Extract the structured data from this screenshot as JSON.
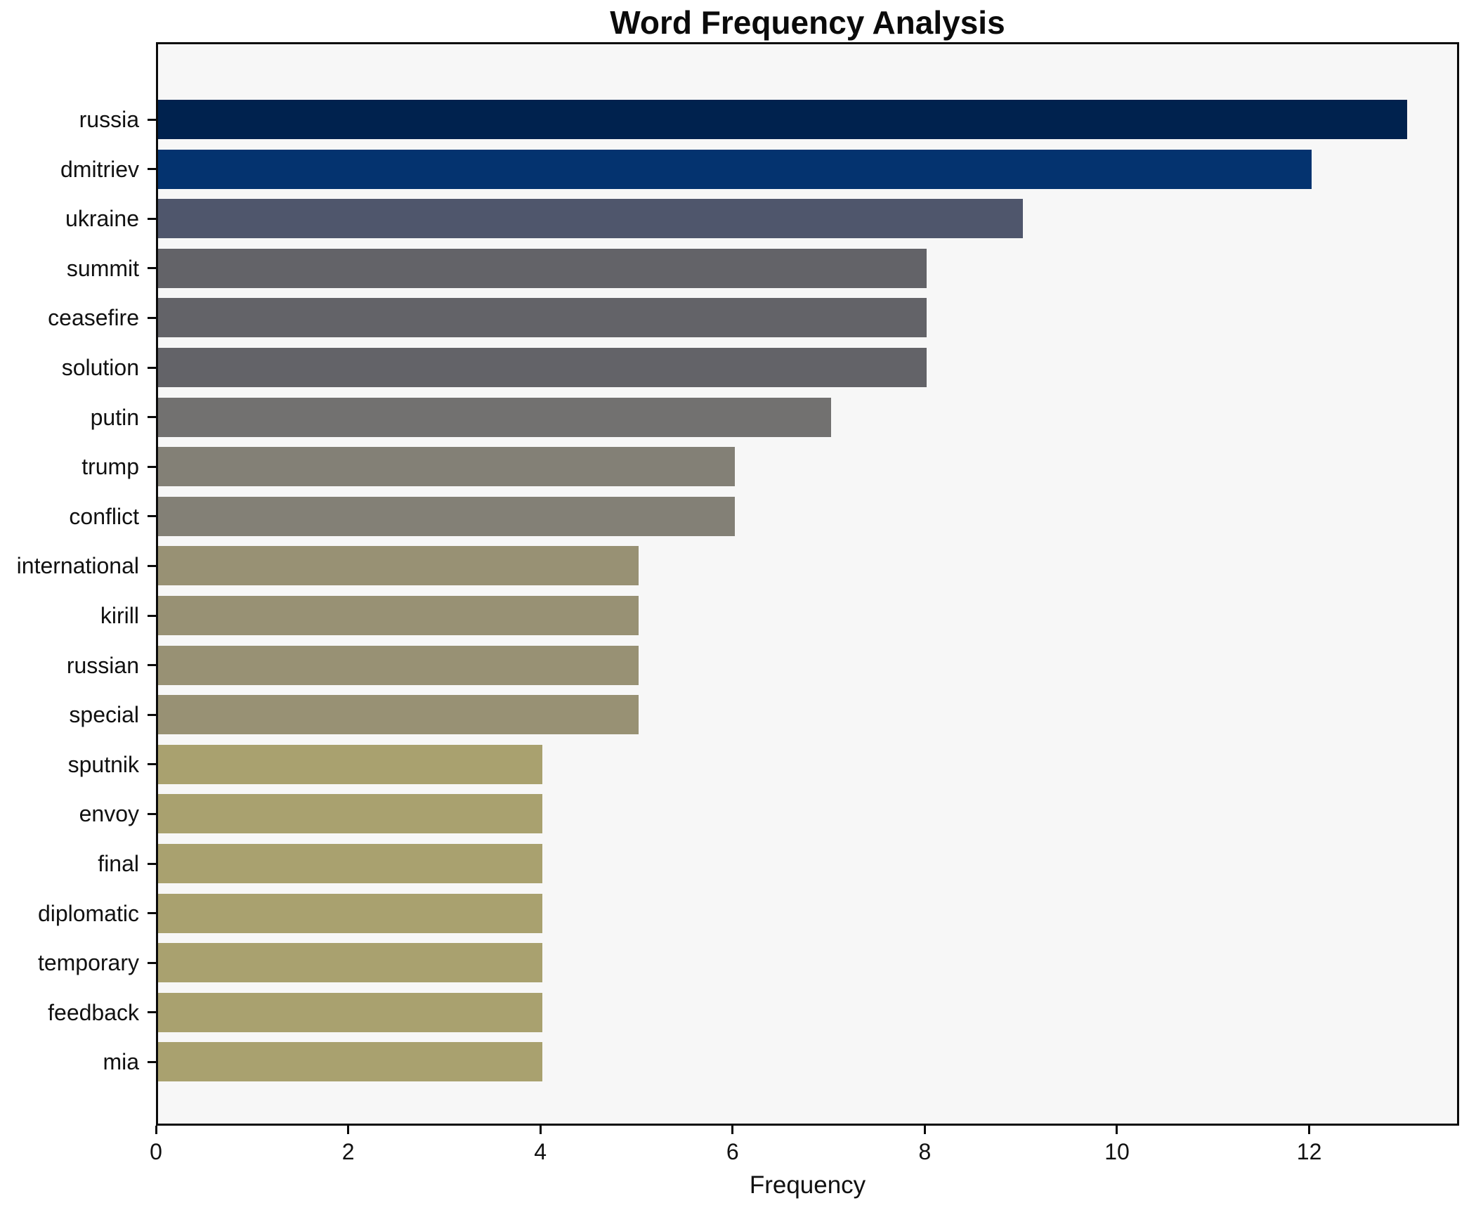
{
  "chart_data": {
    "type": "bar",
    "orientation": "horizontal",
    "title": "Word Frequency Analysis",
    "xlabel": "Frequency",
    "ylabel": "",
    "categories": [
      "russia",
      "dmitriev",
      "ukraine",
      "summit",
      "ceasefire",
      "solution",
      "putin",
      "trump",
      "conflict",
      "international",
      "kirill",
      "russian",
      "special",
      "sputnik",
      "envoy",
      "final",
      "diplomatic",
      "temporary",
      "feedback",
      "mia"
    ],
    "values": [
      13,
      12,
      9,
      8,
      8,
      8,
      7,
      6,
      6,
      5,
      5,
      5,
      5,
      4,
      4,
      4,
      4,
      4,
      4,
      4
    ],
    "bar_colors": [
      "#00224e",
      "#04336f",
      "#4f566c",
      "#636368",
      "#636368",
      "#636368",
      "#727170",
      "#838076",
      "#838076",
      "#989174",
      "#989174",
      "#989174",
      "#989174",
      "#a9a16f",
      "#a9a16f",
      "#a9a16f",
      "#a9a16f",
      "#a9a16f",
      "#a9a16f",
      "#a9a16f"
    ],
    "xticks": [
      "0",
      "2",
      "4",
      "6",
      "8",
      "10",
      "12"
    ],
    "xtick_values": [
      0,
      2,
      4,
      6,
      8,
      10,
      12
    ],
    "xlim": [
      0,
      13.56
    ],
    "grid": false,
    "legend": "none",
    "plot_background": "#f7f7f7",
    "figure_background": "#ffffff",
    "axis_color": "#0b0b0b"
  }
}
